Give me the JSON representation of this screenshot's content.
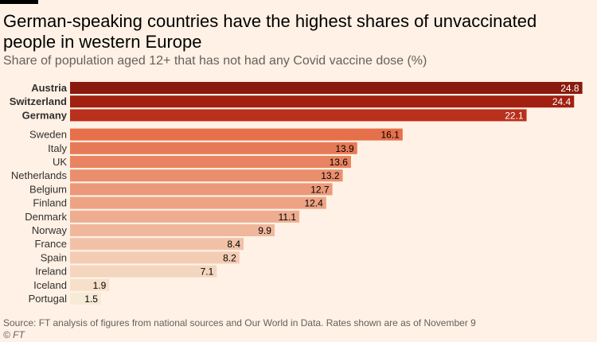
{
  "header": {
    "title": "German-speaking countries have the highest shares of unvaccinated people in western Europe",
    "subtitle": "Share of population aged 12+ that has not had any Covid vaccine dose (%)"
  },
  "footer": {
    "source": "Source: FT analysis of figures from national sources and Our World in Data. Rates shown are as of November 9",
    "credit": "© FT"
  },
  "chart_data": {
    "type": "bar",
    "orientation": "horizontal",
    "categories": [
      "Austria",
      "Switzerland",
      "Germany",
      "Sweden",
      "Italy",
      "UK",
      "Netherlands",
      "Belgium",
      "Finland",
      "Denmark",
      "Norway",
      "France",
      "Spain",
      "Ireland",
      "Iceland",
      "Portugal"
    ],
    "values": [
      24.8,
      24.4,
      22.1,
      16.1,
      13.9,
      13.6,
      13.2,
      12.7,
      12.4,
      11.1,
      9.9,
      8.4,
      8.2,
      7.1,
      1.9,
      1.5
    ],
    "value_labels": [
      "24.8",
      "24.4",
      "22.1",
      "16.1",
      "13.9",
      "13.6",
      "13.2",
      "12.7",
      "12.4",
      "11.1",
      "9.9",
      "8.4",
      "8.2",
      "7.1",
      "1.9",
      "1.5"
    ],
    "highlight_group": [
      "Austria",
      "Switzerland",
      "Germany"
    ],
    "xlim": [
      0,
      25.2
    ],
    "colors": {
      "highlight": [
        "#8b1a0e",
        "#a1200f",
        "#b9301c"
      ],
      "scale_high": "#e5704a",
      "scale_low": "#f7ead6",
      "highlight_text": "#ffffff",
      "label_text": "#000000"
    }
  }
}
